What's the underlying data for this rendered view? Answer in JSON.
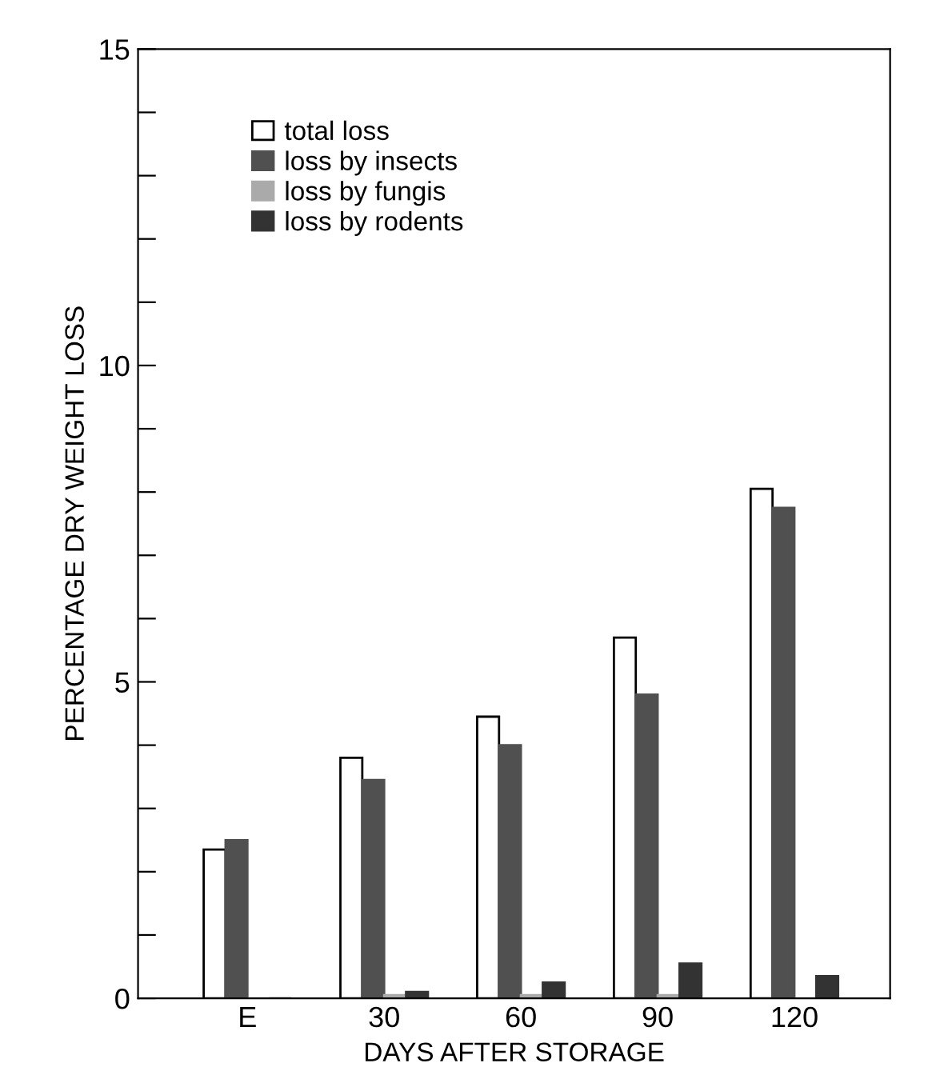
{
  "chart_data": {
    "type": "bar",
    "xlabel": "DAYS AFTER STORAGE",
    "ylabel": "PERCENTAGE DRY WEIGHT LOSS",
    "categories": [
      "E",
      "30",
      "60",
      "90",
      "120"
    ],
    "series": [
      {
        "name": "total loss",
        "color": "#ffffff",
        "values": [
          2.35,
          3.8,
          4.45,
          5.7,
          8.05
        ]
      },
      {
        "name": "loss by insects",
        "color": "#505050",
        "values": [
          2.5,
          3.45,
          4.0,
          4.8,
          7.75
        ]
      },
      {
        "name": "loss by fungis",
        "color": "#aaaaaa",
        "values": [
          0,
          0.05,
          0.05,
          0.05,
          0
        ]
      },
      {
        "name": "loss by rodents",
        "color": "#333333",
        "values": [
          0,
          0.1,
          0.25,
          0.55,
          0.35
        ]
      }
    ],
    "ylim": [
      0,
      15
    ],
    "yticks": [
      0,
      {
        "value": 1,
        "label": null
      },
      {
        "value": 2,
        "label": null
      },
      {
        "value": 3,
        "label": null
      },
      {
        "value": 4,
        "label": null
      },
      5,
      {
        "value": 6,
        "label": null
      },
      {
        "value": 7,
        "label": null
      },
      {
        "value": 8,
        "label": null
      },
      {
        "value": 9,
        "label": null
      },
      10,
      {
        "value": 11,
        "label": null
      },
      {
        "value": 12,
        "label": null
      },
      {
        "value": 13,
        "label": null
      },
      {
        "value": 14,
        "label": null
      },
      15
    ],
    "grid": false,
    "legend": "top left"
  }
}
